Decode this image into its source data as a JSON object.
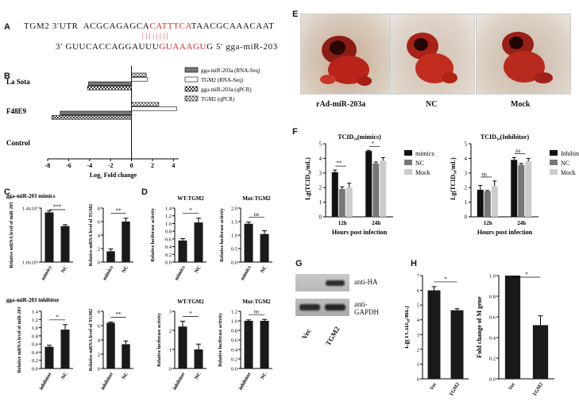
{
  "panel_letters": [
    "A",
    "B",
    "C",
    "D",
    "E",
    "F",
    "G",
    "H"
  ],
  "panelA": {
    "line1_prefix": "TGM2 3′UTR  ACGCAGAGCA",
    "line1_seed": "CATTTCA",
    "line1_suffix": "TAACGCAAACAAT",
    "bars": "||||||||",
    "line2_prefix": "3′ GUUCACCAGGAUUU",
    "line2_seed": "GUAAAGU",
    "line2_suffix": "G 5′ gga-miR-203"
  },
  "panelB": {
    "chart_data": {
      "type": "bar",
      "orientation": "horizontal",
      "categories": [
        "La Sota",
        "F48E9",
        "Control"
      ],
      "series": [
        {
          "name": "gga-miR-203a (RNA-Seq)",
          "values": [
            -4.1,
            -6.8,
            0
          ]
        },
        {
          "name": "TGM2 (RNA-Seq)",
          "values": [
            1.5,
            4.3,
            0
          ]
        },
        {
          "name": "gga-miR-203a (qPCR)",
          "values": [
            -4.2,
            -7.6,
            0
          ]
        },
        {
          "name": "TGM2 (qPCR)",
          "values": [
            1.4,
            2.6,
            0
          ]
        }
      ],
      "xlabel": "Log₂ Fold change",
      "xticks": [
        "-8",
        "-6",
        "-4",
        "-2",
        "0",
        "2",
        "4"
      ],
      "xlim": [
        -8,
        4.5
      ],
      "colors": [
        "#777777",
        "#ffffff",
        "#333333",
        "#ffffff"
      ]
    }
  },
  "panelC": {
    "title_mimics": "gga-miR-203 mimics",
    "title_inhibitor": "gga-miR-203 inhibitor",
    "ylabel_mir": "Relative mRNA level of miR-203",
    "ylabel_tgm": "Relative mRNA level of TGM2",
    "charts": [
      {
        "type": "bar",
        "categories": [
          "mimics",
          "NC"
        ],
        "values": [
          1.38,
          1.0
        ],
        "errors": [
          0.05,
          0.04
        ],
        "sig": "***",
        "ylim": [
          0,
          1.5
        ],
        "yticks": [
          "1.0x10⁵",
          "1.4x10⁷"
        ]
      },
      {
        "type": "bar",
        "categories": [
          "mimics",
          "NC"
        ],
        "values": [
          1.6,
          6.0
        ],
        "errors": [
          0.35,
          0.5
        ],
        "sig": "**",
        "ylim": [
          0,
          8
        ],
        "yticks": [
          "0",
          "2",
          "4",
          "6",
          "8"
        ]
      },
      {
        "type": "bar",
        "categories": [
          "inhibitor",
          "NC"
        ],
        "values": [
          0.57,
          1.02
        ],
        "errors": [
          0.04,
          0.13
        ],
        "sig": "*",
        "ylim": [
          0,
          1.5
        ],
        "yticks": [
          "0.0",
          "0.2",
          "0.4",
          "0.6",
          "0.8",
          "1.0",
          "1.2",
          "1.4"
        ]
      },
      {
        "type": "bar",
        "categories": [
          "inhibitor",
          "NC"
        ],
        "values": [
          6.4,
          3.4
        ],
        "errors": [
          0.1,
          0.45
        ],
        "sig": "**",
        "ylim": [
          0,
          8
        ],
        "yticks": [
          "0",
          "2",
          "4",
          "6",
          "8"
        ]
      }
    ]
  },
  "panelD": {
    "ylabel": "Relative luciferase activity",
    "charts": [
      {
        "type": "bar",
        "title": "WT-TGM2",
        "categories": [
          "mimics",
          "NC"
        ],
        "values": [
          0.6,
          1.1
        ],
        "errors": [
          0.05,
          0.12
        ],
        "sig": "*",
        "ylim": [
          0,
          1.5
        ],
        "yticks": [
          "0.0",
          "0.2",
          "0.4",
          "0.6",
          "0.8",
          "1.0",
          "1.2",
          "1.4"
        ]
      },
      {
        "type": "bar",
        "title": "Mut-TGM2",
        "categories": [
          "mimics",
          "NC"
        ],
        "values": [
          1.42,
          1.04
        ],
        "errors": [
          0.06,
          0.12
        ],
        "sig": "ns",
        "ylim": [
          0,
          2
        ],
        "yticks": [
          "0.0",
          "0.5",
          "1.0",
          "1.5",
          "2.0"
        ]
      },
      {
        "type": "bar",
        "title": "WT-TGM2",
        "categories": [
          "inhibitor",
          "NC"
        ],
        "values": [
          2.2,
          1.0
        ],
        "errors": [
          0.28,
          0.28
        ],
        "sig": "*",
        "ylim": [
          0,
          3
        ],
        "yticks": [
          "0",
          "1",
          "2",
          "3"
        ]
      },
      {
        "type": "bar",
        "title": "Mut-TGM2",
        "categories": [
          "inhibitor",
          "NC"
        ],
        "values": [
          1.0,
          1.0
        ],
        "errors": [
          0.02,
          0.03
        ],
        "sig": "ns",
        "ylim": [
          0,
          1.2
        ],
        "yticks": [
          "0.0",
          "0.2",
          "0.4",
          "0.6",
          "0.8",
          "1.0",
          "1.2"
        ]
      }
    ]
  },
  "panelE": {
    "labels": [
      "rAd-miR-203a",
      "NC",
      "Mock"
    ]
  },
  "panelF": {
    "ylabel": "Lg(TCID₅₀/mL)",
    "xlabel": "Hours post infection",
    "charts": [
      {
        "type": "bar",
        "title": "TCID₅₀(mimics)",
        "categories": [
          "12h",
          "24h"
        ],
        "series": [
          {
            "name": "mimics",
            "values": [
              3.05,
              4.5
            ],
            "errors": [
              0.15,
              0.05
            ]
          },
          {
            "name": "NC",
            "values": [
              1.9,
              3.65
            ],
            "errors": [
              0.15,
              0.1
            ]
          },
          {
            "name": "Mock",
            "values": [
              2.0,
              3.85
            ],
            "errors": [
              0.3,
              0.2
            ]
          }
        ],
        "sig": [
          "**",
          "*"
        ],
        "ylim": [
          0,
          5
        ],
        "yticks": [
          "0",
          "1",
          "2",
          "3",
          "4",
          "5"
        ],
        "colors": [
          "#111111",
          "#777777",
          "#cccccc"
        ]
      },
      {
        "type": "bar",
        "title": "TCID₅₀(Inhibitor)",
        "categories": [
          "12h",
          "24h"
        ],
        "series": [
          {
            "name": "Inhibitor",
            "values": [
              1.85,
              3.9
            ],
            "errors": [
              0.3,
              0.15
            ]
          },
          {
            "name": "NC",
            "values": [
              1.75,
              3.55
            ],
            "errors": [
              0.05,
              0.1
            ]
          },
          {
            "name": "Mock",
            "values": [
              2.1,
              3.8
            ],
            "errors": [
              0.35,
              0.2
            ]
          }
        ],
        "sig": [
          "ns",
          "ns"
        ],
        "ylim": [
          0,
          5
        ],
        "yticks": [
          "0",
          "1",
          "2",
          "3",
          "4",
          "5"
        ],
        "colors": [
          "#111111",
          "#777777",
          "#cccccc"
        ]
      }
    ]
  },
  "panelG": {
    "band1": "anti-HA",
    "band2": "anti-\nGAPDH",
    "lanes": [
      "Vec",
      "TGM2"
    ]
  },
  "panelH": {
    "charts": [
      {
        "type": "bar",
        "categories": [
          "Vec",
          "TGM2"
        ],
        "values": [
          6.0,
          4.65
        ],
        "errors": [
          0.25,
          0.1
        ],
        "sig": "*",
        "ylim": [
          0,
          7
        ],
        "yticks": [
          "0",
          "1",
          "2",
          "3",
          "4",
          "5",
          "6",
          "7"
        ],
        "ylabel": "Lg(TCID₅₀/mL)"
      },
      {
        "type": "bar",
        "categories": [
          "Vec",
          "TGM2"
        ],
        "values": [
          1.0,
          0.52
        ],
        "errors": [
          0.0,
          0.09
        ],
        "sig": "*",
        "ylim": [
          0,
          1.0
        ],
        "yticks": [
          "0.0",
          "0.2",
          "0.4",
          "0.6",
          "0.8",
          "1.0"
        ],
        "ylabel": "Fold change of M gene"
      }
    ]
  }
}
